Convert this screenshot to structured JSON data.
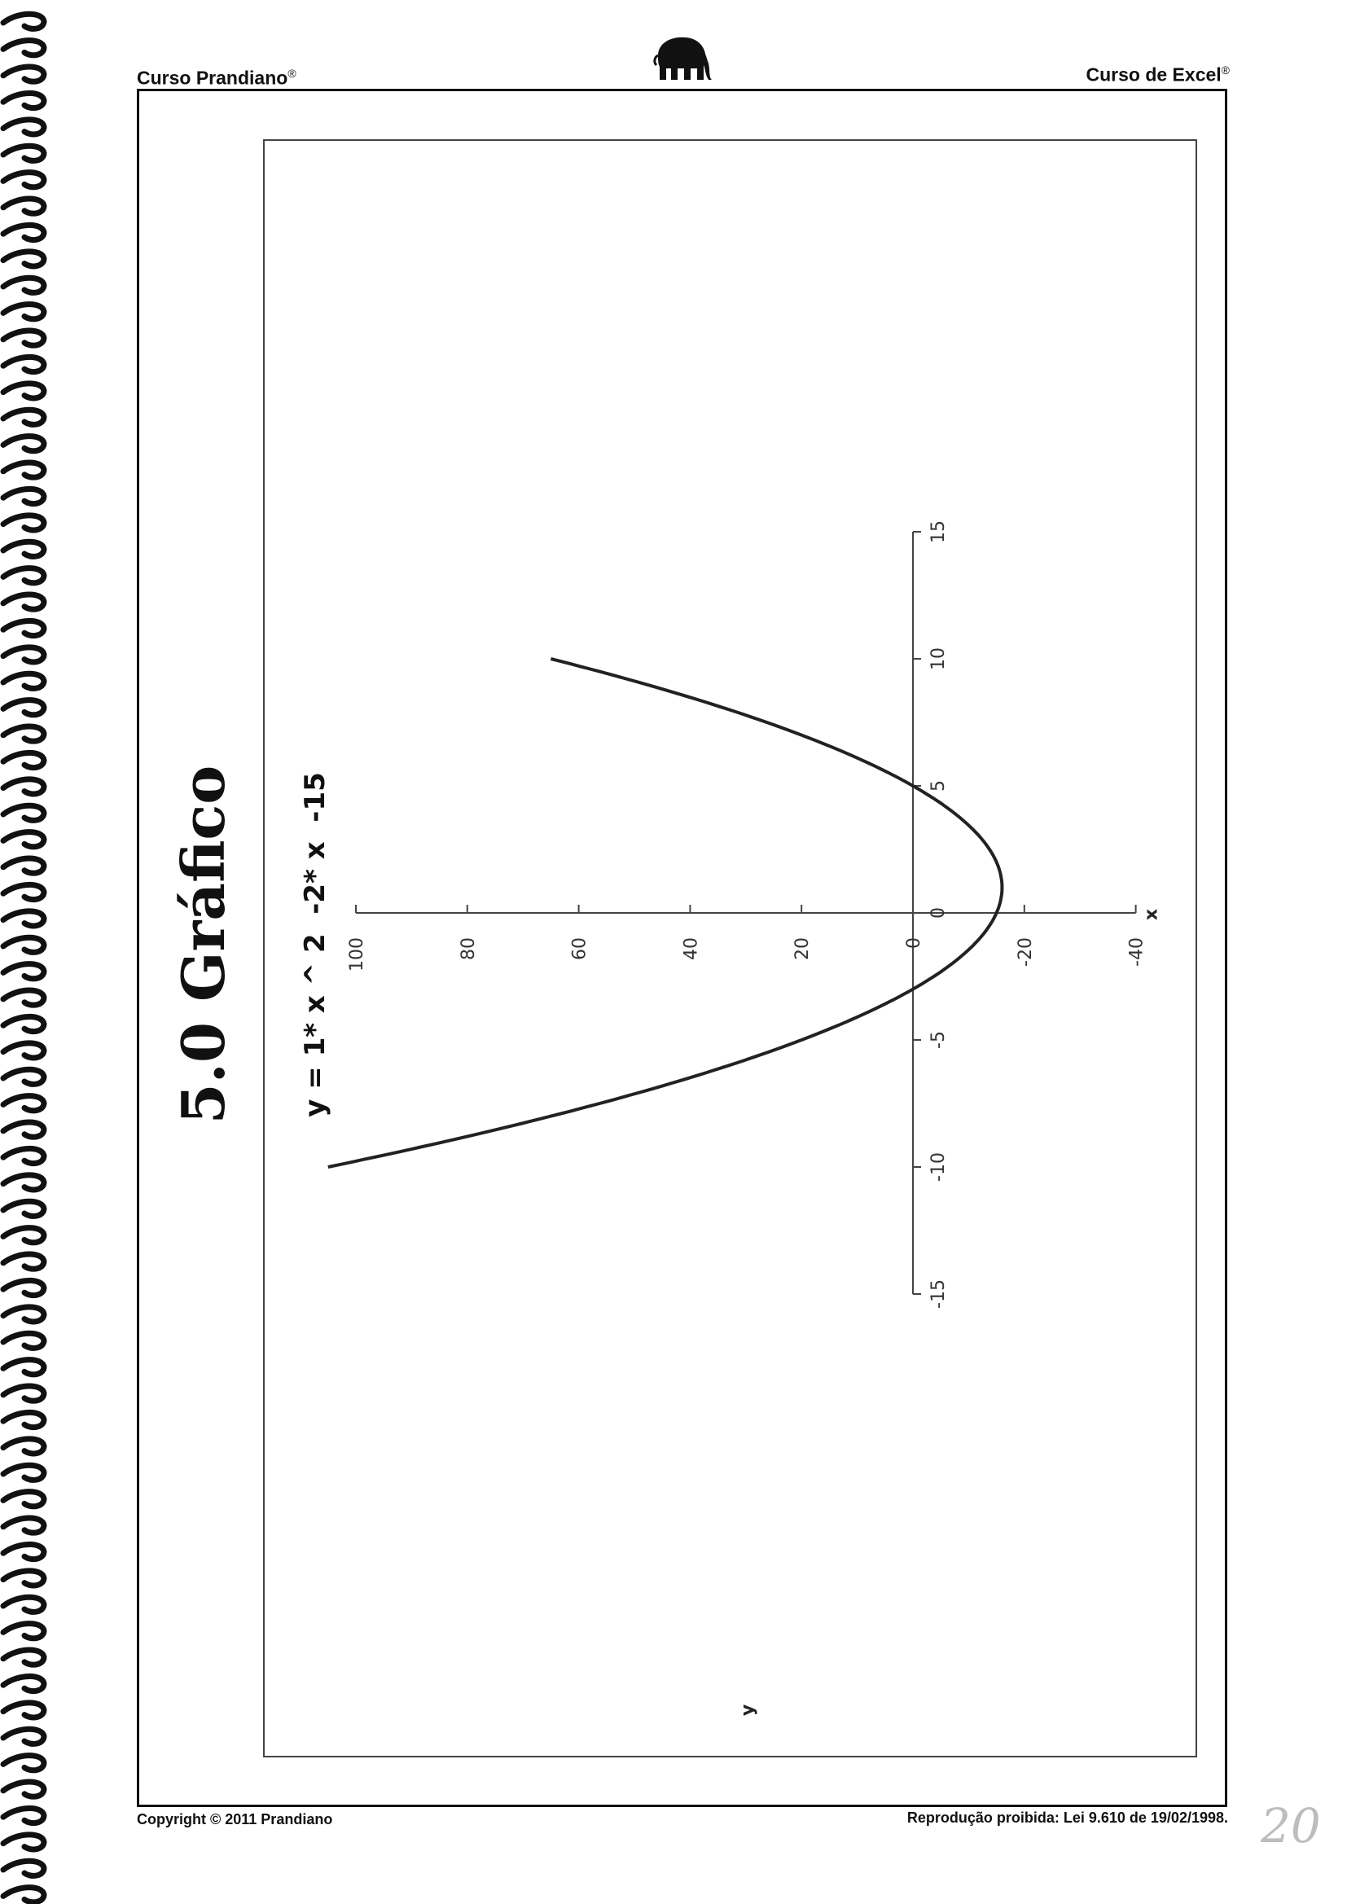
{
  "header": {
    "left_text": "Curso Prandiano",
    "left_mark": "®",
    "right_text": "Curso de Excel",
    "right_mark": "®",
    "logo_icon": "elephant-icon"
  },
  "footer": {
    "copyright": "Copyright © 2011 Prandiano",
    "notice": "Reprodução proibida: Lei 9.610 de 19/02/1998.",
    "page_number": "20"
  },
  "section_title": "5.0 Gráfico",
  "equation": "y = 1* x ^ 2  -2* x  -15",
  "chart_data": {
    "type": "line",
    "orientation": "rotated 90° counter-clockwise on the page",
    "title": "",
    "xlabel": "x",
    "ylabel": "y",
    "xlim": [
      -15,
      15
    ],
    "ylim": [
      -40,
      100
    ],
    "x_ticks": [
      "-15",
      "-10",
      "-5",
      "0",
      "5",
      "10",
      "15"
    ],
    "y_ticks": [
      "-40",
      "-20",
      "0",
      "20",
      "40",
      "60",
      "80",
      "100"
    ],
    "grid": false,
    "legend": "none",
    "series": [
      {
        "x": [
          -10,
          -9,
          -8,
          -7,
          -6,
          -5,
          -4,
          -3,
          -2,
          -1,
          0,
          1,
          2,
          3,
          4,
          5,
          6,
          7,
          8,
          9,
          10
        ],
        "y": [
          105,
          84,
          65,
          48,
          33,
          20,
          9,
          0,
          -7,
          -12,
          -15,
          -16,
          -15,
          -12,
          -7,
          0,
          9,
          20,
          33,
          48,
          65
        ],
        "color": "#222222"
      }
    ]
  }
}
